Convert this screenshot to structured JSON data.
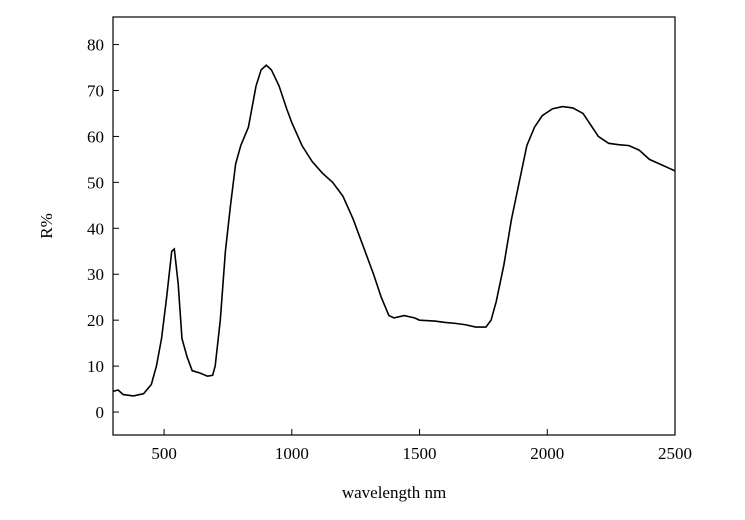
{
  "chart_data": {
    "type": "line",
    "x_label": "wavelength nm",
    "y_label": "R%",
    "x": [
      300,
      320,
      340,
      380,
      420,
      450,
      470,
      490,
      510,
      530,
      540,
      555,
      570,
      590,
      610,
      640,
      670,
      690,
      700,
      720,
      740,
      760,
      780,
      800,
      830,
      860,
      880,
      900,
      920,
      950,
      980,
      1000,
      1040,
      1080,
      1120,
      1160,
      1200,
      1240,
      1280,
      1320,
      1350,
      1380,
      1400,
      1440,
      1480,
      1500,
      1560,
      1600,
      1640,
      1680,
      1720,
      1760,
      1780,
      1800,
      1830,
      1860,
      1890,
      1920,
      1950,
      1980,
      2020,
      2060,
      2100,
      2140,
      2170,
      2200,
      2240,
      2280,
      2320,
      2360,
      2400,
      2440,
      2480,
      2500
    ],
    "series": [
      {
        "name": "R",
        "color": "#000000",
        "values": [
          4.5,
          4.8,
          3.8,
          3.5,
          4,
          6,
          10,
          16,
          25,
          35,
          35.5,
          28,
          16,
          12,
          9,
          8.5,
          7.8,
          8,
          10,
          20,
          35,
          45,
          54,
          58,
          62,
          71,
          74.5,
          75.5,
          74.5,
          71,
          66,
          63,
          58,
          54.5,
          52,
          50,
          47,
          42,
          36,
          30,
          25,
          21,
          20.5,
          21,
          20.5,
          20,
          19.8,
          19.5,
          19.3,
          19,
          18.5,
          18.5,
          20,
          24,
          32,
          42,
          50,
          58,
          62,
          64.5,
          66,
          66.5,
          66.2,
          65,
          62.5,
          60,
          58.5,
          58.2,
          58,
          57,
          55,
          54,
          53,
          52.5
        ]
      }
    ],
    "xlim": [
      300,
      2500
    ],
    "ylim": [
      -5,
      86
    ],
    "xticks": [
      500,
      1000,
      1500,
      2000,
      2500
    ],
    "yticks": [
      0,
      10,
      20,
      30,
      40,
      50,
      60,
      70,
      80
    ]
  }
}
